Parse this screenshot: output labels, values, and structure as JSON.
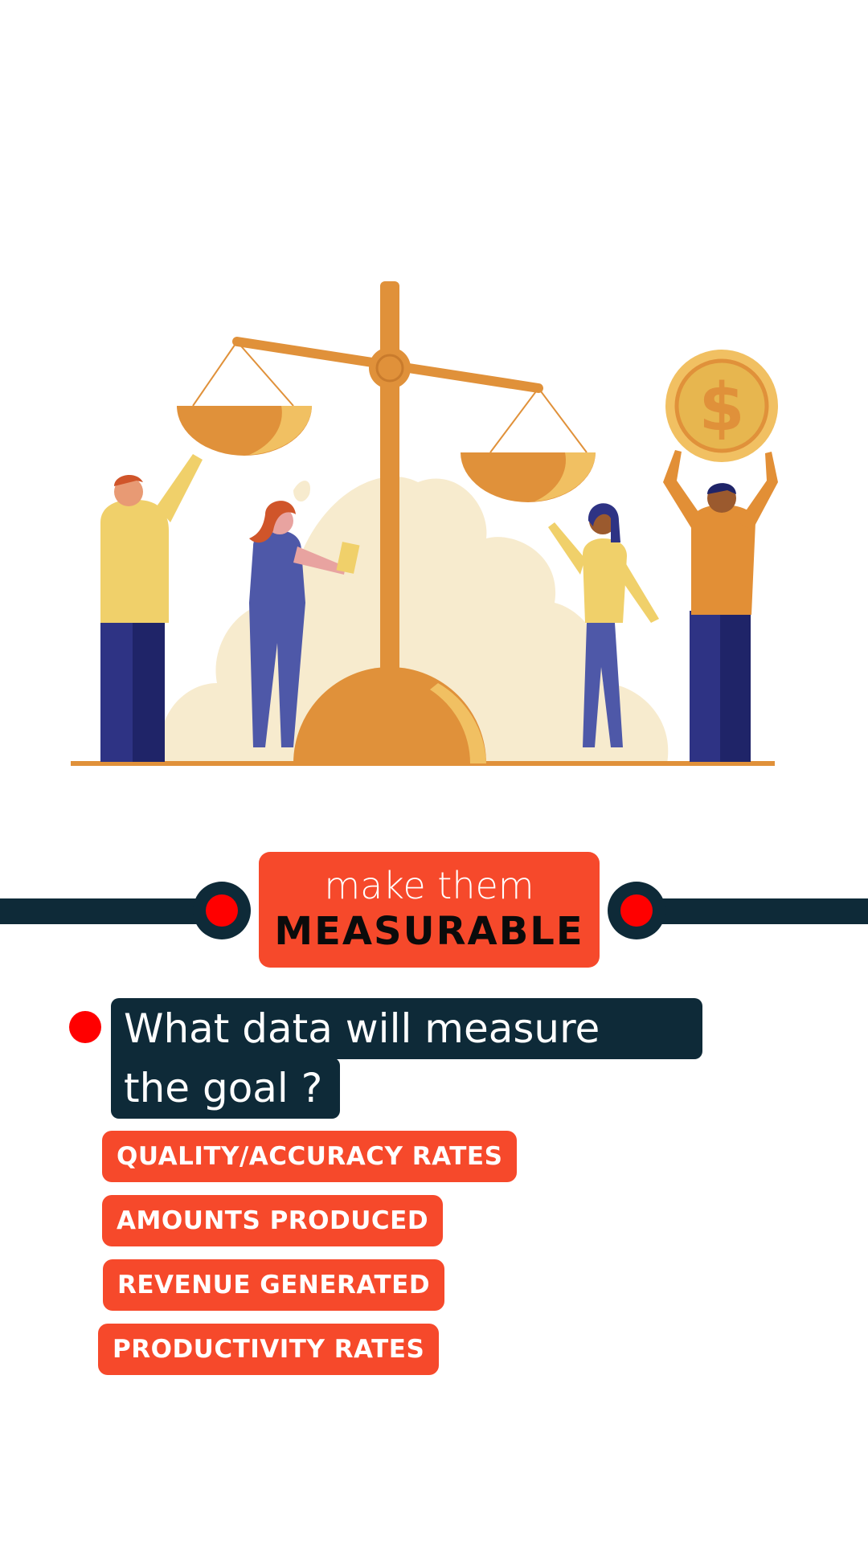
{
  "heading": {
    "top": "make them",
    "main": "MEASURABLE"
  },
  "question": {
    "line1": "What data will measure",
    "line2": "the goal ?"
  },
  "tags": [
    "QUALITY/ACCURACY RATES",
    "AMOUNTS PRODUCED",
    "REVENUE GENERATED",
    "PRODUCTIVITY RATES"
  ],
  "illustration": {
    "coin_symbol": "$",
    "colors": {
      "scale": "#e0913a",
      "scale_highlight": "#f1c062",
      "blob": "#f7ebce",
      "navy_pants": "#2e3384",
      "yellow_shirt": "#f0d06a",
      "orange_shirt": "#e28f36"
    }
  },
  "colors": {
    "accent": "#f6492b",
    "dark": "#0e2a38",
    "dot": "#ff0000"
  }
}
